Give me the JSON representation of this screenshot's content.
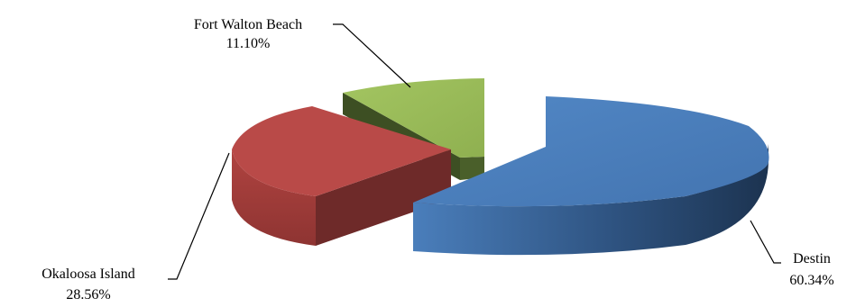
{
  "chart_data": {
    "type": "pie",
    "style": "3d-exploded",
    "series": [
      {
        "name": "Destin",
        "value": 60.34,
        "label": "60.34%",
        "color": "#4a7ebb"
      },
      {
        "name": "Okaloosa Island",
        "value": 28.56,
        "label": "28.56%",
        "color": "#b94a48"
      },
      {
        "name": "Fort Walton Beach",
        "value": 11.1,
        "label": "11.10%",
        "color": "#9bbb59"
      }
    ],
    "legend": "none",
    "title": ""
  }
}
